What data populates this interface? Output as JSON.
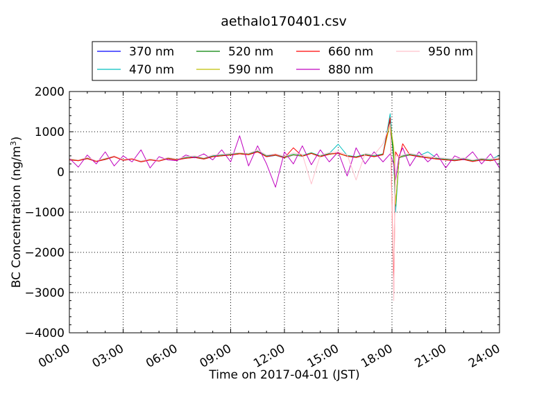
{
  "chart_data": {
    "type": "line",
    "title": "aethalo170401.csv",
    "xlabel": "Time on 2017-04-01 (JST)",
    "ylabel_prefix": "BC Concentration (ng/m",
    "ylabel_sup": "3",
    "ylabel_suffix": ")",
    "xlim": [
      0,
      24
    ],
    "ylim": [
      -4000,
      2000
    ],
    "grid": true,
    "legend_placement": "top-center",
    "x_ticks": [
      {
        "value": 0,
        "label": "00:00"
      },
      {
        "value": 3,
        "label": "03:00"
      },
      {
        "value": 6,
        "label": "06:00"
      },
      {
        "value": 9,
        "label": "09:00"
      },
      {
        "value": 12,
        "label": "12:00"
      },
      {
        "value": 15,
        "label": "15:00"
      },
      {
        "value": 18,
        "label": "18:00"
      },
      {
        "value": 21,
        "label": "21:00"
      },
      {
        "value": 24,
        "label": "24:00"
      }
    ],
    "y_ticks": [
      {
        "value": 2000,
        "label": "2000"
      },
      {
        "value": 1000,
        "label": "1000"
      },
      {
        "value": 0,
        "label": "0"
      },
      {
        "value": -1000,
        "label": "−1000"
      },
      {
        "value": -2000,
        "label": "−2000"
      },
      {
        "value": -3000,
        "label": "−3000"
      },
      {
        "value": -4000,
        "label": "−4000"
      }
    ],
    "x": [
      0.0,
      0.5,
      1.0,
      1.5,
      2.0,
      2.5,
      3.0,
      3.5,
      4.0,
      4.5,
      5.0,
      5.5,
      6.0,
      6.5,
      7.0,
      7.5,
      8.0,
      8.5,
      9.0,
      9.5,
      10.0,
      10.5,
      11.0,
      11.5,
      12.0,
      12.5,
      13.0,
      13.5,
      14.0,
      14.5,
      15.0,
      15.5,
      16.0,
      16.5,
      17.0,
      17.5,
      17.9,
      18.1,
      18.2,
      18.4,
      18.6,
      19.0,
      19.5,
      20.0,
      20.5,
      21.0,
      21.5,
      22.0,
      22.5,
      23.0,
      23.5,
      24.0
    ],
    "series": [
      {
        "name": "370 nm",
        "color": "#0000ff",
        "values": [
          300,
          280,
          330,
          260,
          310,
          380,
          290,
          320,
          250,
          300,
          270,
          330,
          300,
          340,
          360,
          320,
          380,
          400,
          420,
          450,
          430,
          500,
          380,
          410,
          350,
          420,
          390,
          460,
          380,
          440,
          470,
          390,
          360,
          420,
          380,
          430,
          1300,
          300,
          -900,
          350,
          380,
          420,
          380,
          350,
          320,
          300,
          280,
          310,
          260,
          300,
          280,
          320
        ]
      },
      {
        "name": "470 nm",
        "color": "#00bfbf",
        "values": [
          320,
          290,
          350,
          270,
          330,
          390,
          310,
          330,
          270,
          320,
          290,
          350,
          310,
          360,
          380,
          340,
          400,
          420,
          440,
          470,
          450,
          520,
          400,
          430,
          370,
          440,
          410,
          480,
          400,
          460,
          690,
          410,
          380,
          440,
          400,
          450,
          1450,
          320,
          -1000,
          370,
          400,
          440,
          400,
          500,
          340,
          320,
          300,
          330,
          280,
          320,
          300,
          420
        ]
      },
      {
        "name": "520 nm",
        "color": "#008000",
        "values": [
          310,
          285,
          340,
          265,
          320,
          385,
          300,
          325,
          260,
          310,
          280,
          340,
          305,
          350,
          370,
          330,
          390,
          410,
          430,
          460,
          440,
          510,
          390,
          420,
          360,
          430,
          400,
          470,
          390,
          450,
          460,
          400,
          370,
          430,
          390,
          440,
          1250,
          310,
          -850,
          360,
          390,
          430,
          390,
          360,
          330,
          310,
          290,
          320,
          270,
          310,
          290,
          330
        ]
      },
      {
        "name": "590 nm",
        "color": "#bfbf00",
        "values": [
          305,
          282,
          335,
          262,
          315,
          382,
          295,
          322,
          255,
          305,
          275,
          335,
          302,
          345,
          365,
          325,
          385,
          405,
          425,
          455,
          435,
          505,
          385,
          415,
          355,
          425,
          395,
          465,
          385,
          445,
          455,
          395,
          365,
          425,
          385,
          435,
          1200,
          600,
          -800,
          355,
          385,
          425,
          385,
          355,
          325,
          305,
          285,
          315,
          265,
          305,
          285,
          325
        ]
      },
      {
        "name": "660 nm",
        "color": "#ff0000",
        "values": [
          300,
          280,
          330,
          260,
          310,
          380,
          290,
          320,
          250,
          300,
          270,
          330,
          300,
          340,
          360,
          320,
          380,
          400,
          420,
          450,
          430,
          500,
          380,
          430,
          350,
          600,
          390,
          460,
          380,
          440,
          470,
          390,
          360,
          420,
          380,
          430,
          1350,
          -3000,
          500,
          350,
          700,
          420,
          380,
          350,
          320,
          300,
          280,
          310,
          260,
          300,
          280,
          320
        ]
      },
      {
        "name": "880 nm",
        "color": "#bf00bf",
        "values": [
          340,
          120,
          420,
          200,
          500,
          150,
          400,
          250,
          550,
          100,
          380,
          300,
          280,
          420,
          350,
          450,
          300,
          550,
          250,
          900,
          150,
          650,
          200,
          -380,
          500,
          200,
          650,
          180,
          550,
          250,
          500,
          -100,
          600,
          200,
          500,
          250,
          450,
          200,
          -200,
          400,
          600,
          150,
          500,
          250,
          450,
          100,
          400,
          300,
          500,
          200,
          450,
          100
        ]
      },
      {
        "name": "950 nm",
        "color": "#ffc0cb",
        "values": [
          330,
          300,
          360,
          280,
          340,
          400,
          310,
          340,
          270,
          320,
          290,
          360,
          320,
          380,
          400,
          350,
          420,
          440,
          460,
          480,
          460,
          550,
          420,
          450,
          390,
          470,
          440,
          -300,
          420,
          480,
          500,
          430,
          -200,
          460,
          420,
          700,
          1200,
          -3200,
          400,
          380,
          420,
          460,
          420,
          390,
          360,
          340,
          320,
          350,
          300,
          340,
          320,
          360
        ]
      }
    ]
  }
}
